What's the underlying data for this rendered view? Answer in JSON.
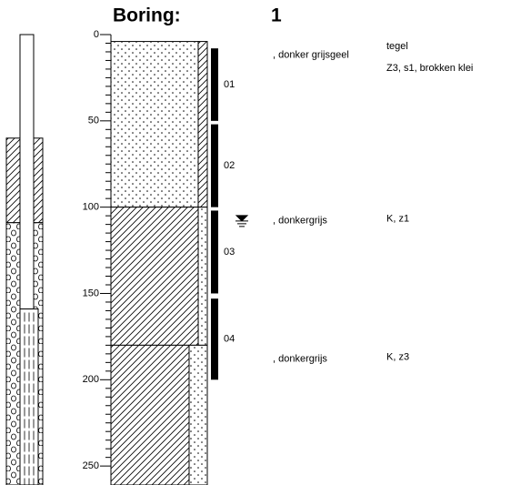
{
  "title": {
    "label": "Boring:",
    "number": "1"
  },
  "depth_axis": {
    "ylim": [
      0,
      261
    ],
    "yticks": [
      0,
      50,
      100,
      150,
      200,
      250
    ]
  },
  "well": {
    "casing_top": 0,
    "seal": [
      60,
      109
    ],
    "filter_pack": [
      109,
      261
    ],
    "screen": [
      159,
      261
    ]
  },
  "layers": [
    {
      "top": 0,
      "bottom": 4,
      "pattern": "none",
      "code": "tegel"
    },
    {
      "top": 4,
      "bottom": 100,
      "pattern": "sand",
      "side_pattern": "clay",
      "description": ", donker grijsgeel",
      "code": "Z3, s1, brokken klei"
    },
    {
      "top": 100,
      "bottom": 180,
      "pattern": "clay",
      "side_pattern": "sand",
      "description": ", donkergrijs",
      "code": "K, z1"
    },
    {
      "top": 180,
      "bottom": 261,
      "pattern": "clay",
      "side_pattern": "sand",
      "description": ", donkergrijs",
      "code": "K, z3"
    }
  ],
  "samples": [
    {
      "label": "01",
      "top": 8,
      "bottom": 50
    },
    {
      "label": "02",
      "top": 52,
      "bottom": 100
    },
    {
      "label": "03",
      "top": 102,
      "bottom": 150
    },
    {
      "label": "04",
      "top": 153,
      "bottom": 200
    }
  ],
  "groundwater_depth": 108
}
